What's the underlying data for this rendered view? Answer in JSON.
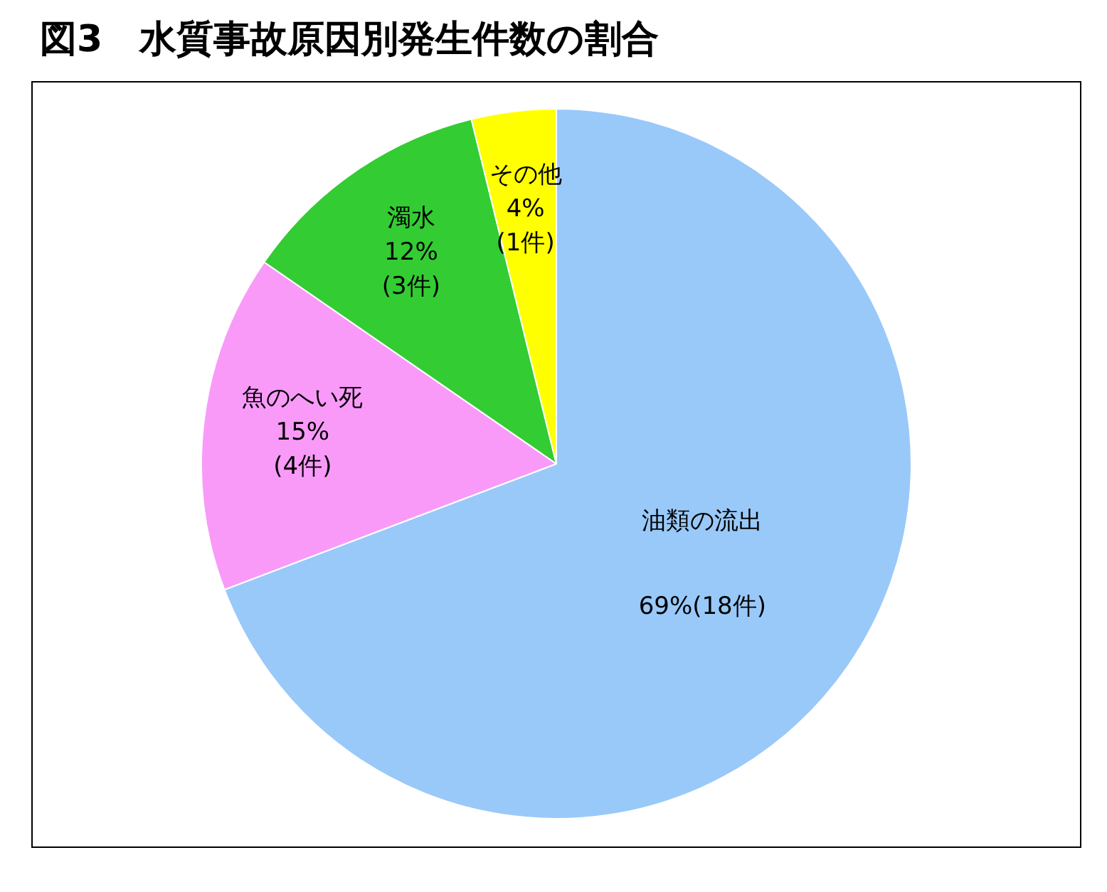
{
  "chart_data": {
    "type": "pie",
    "title": "図3　水質事故原因別発生件数の割合",
    "categories": [
      "油類の流出",
      "魚のへい死",
      "濁水",
      "その他"
    ],
    "values": [
      18,
      4,
      3,
      1
    ],
    "colors": [
      "#99c9f9",
      "#f99af9",
      "#33cc33",
      "#ffff00"
    ],
    "value_labels": [
      "69%(18件)",
      "15%\n(4件)",
      "12%\n(3件)",
      "4%\n(1件)"
    ]
  }
}
